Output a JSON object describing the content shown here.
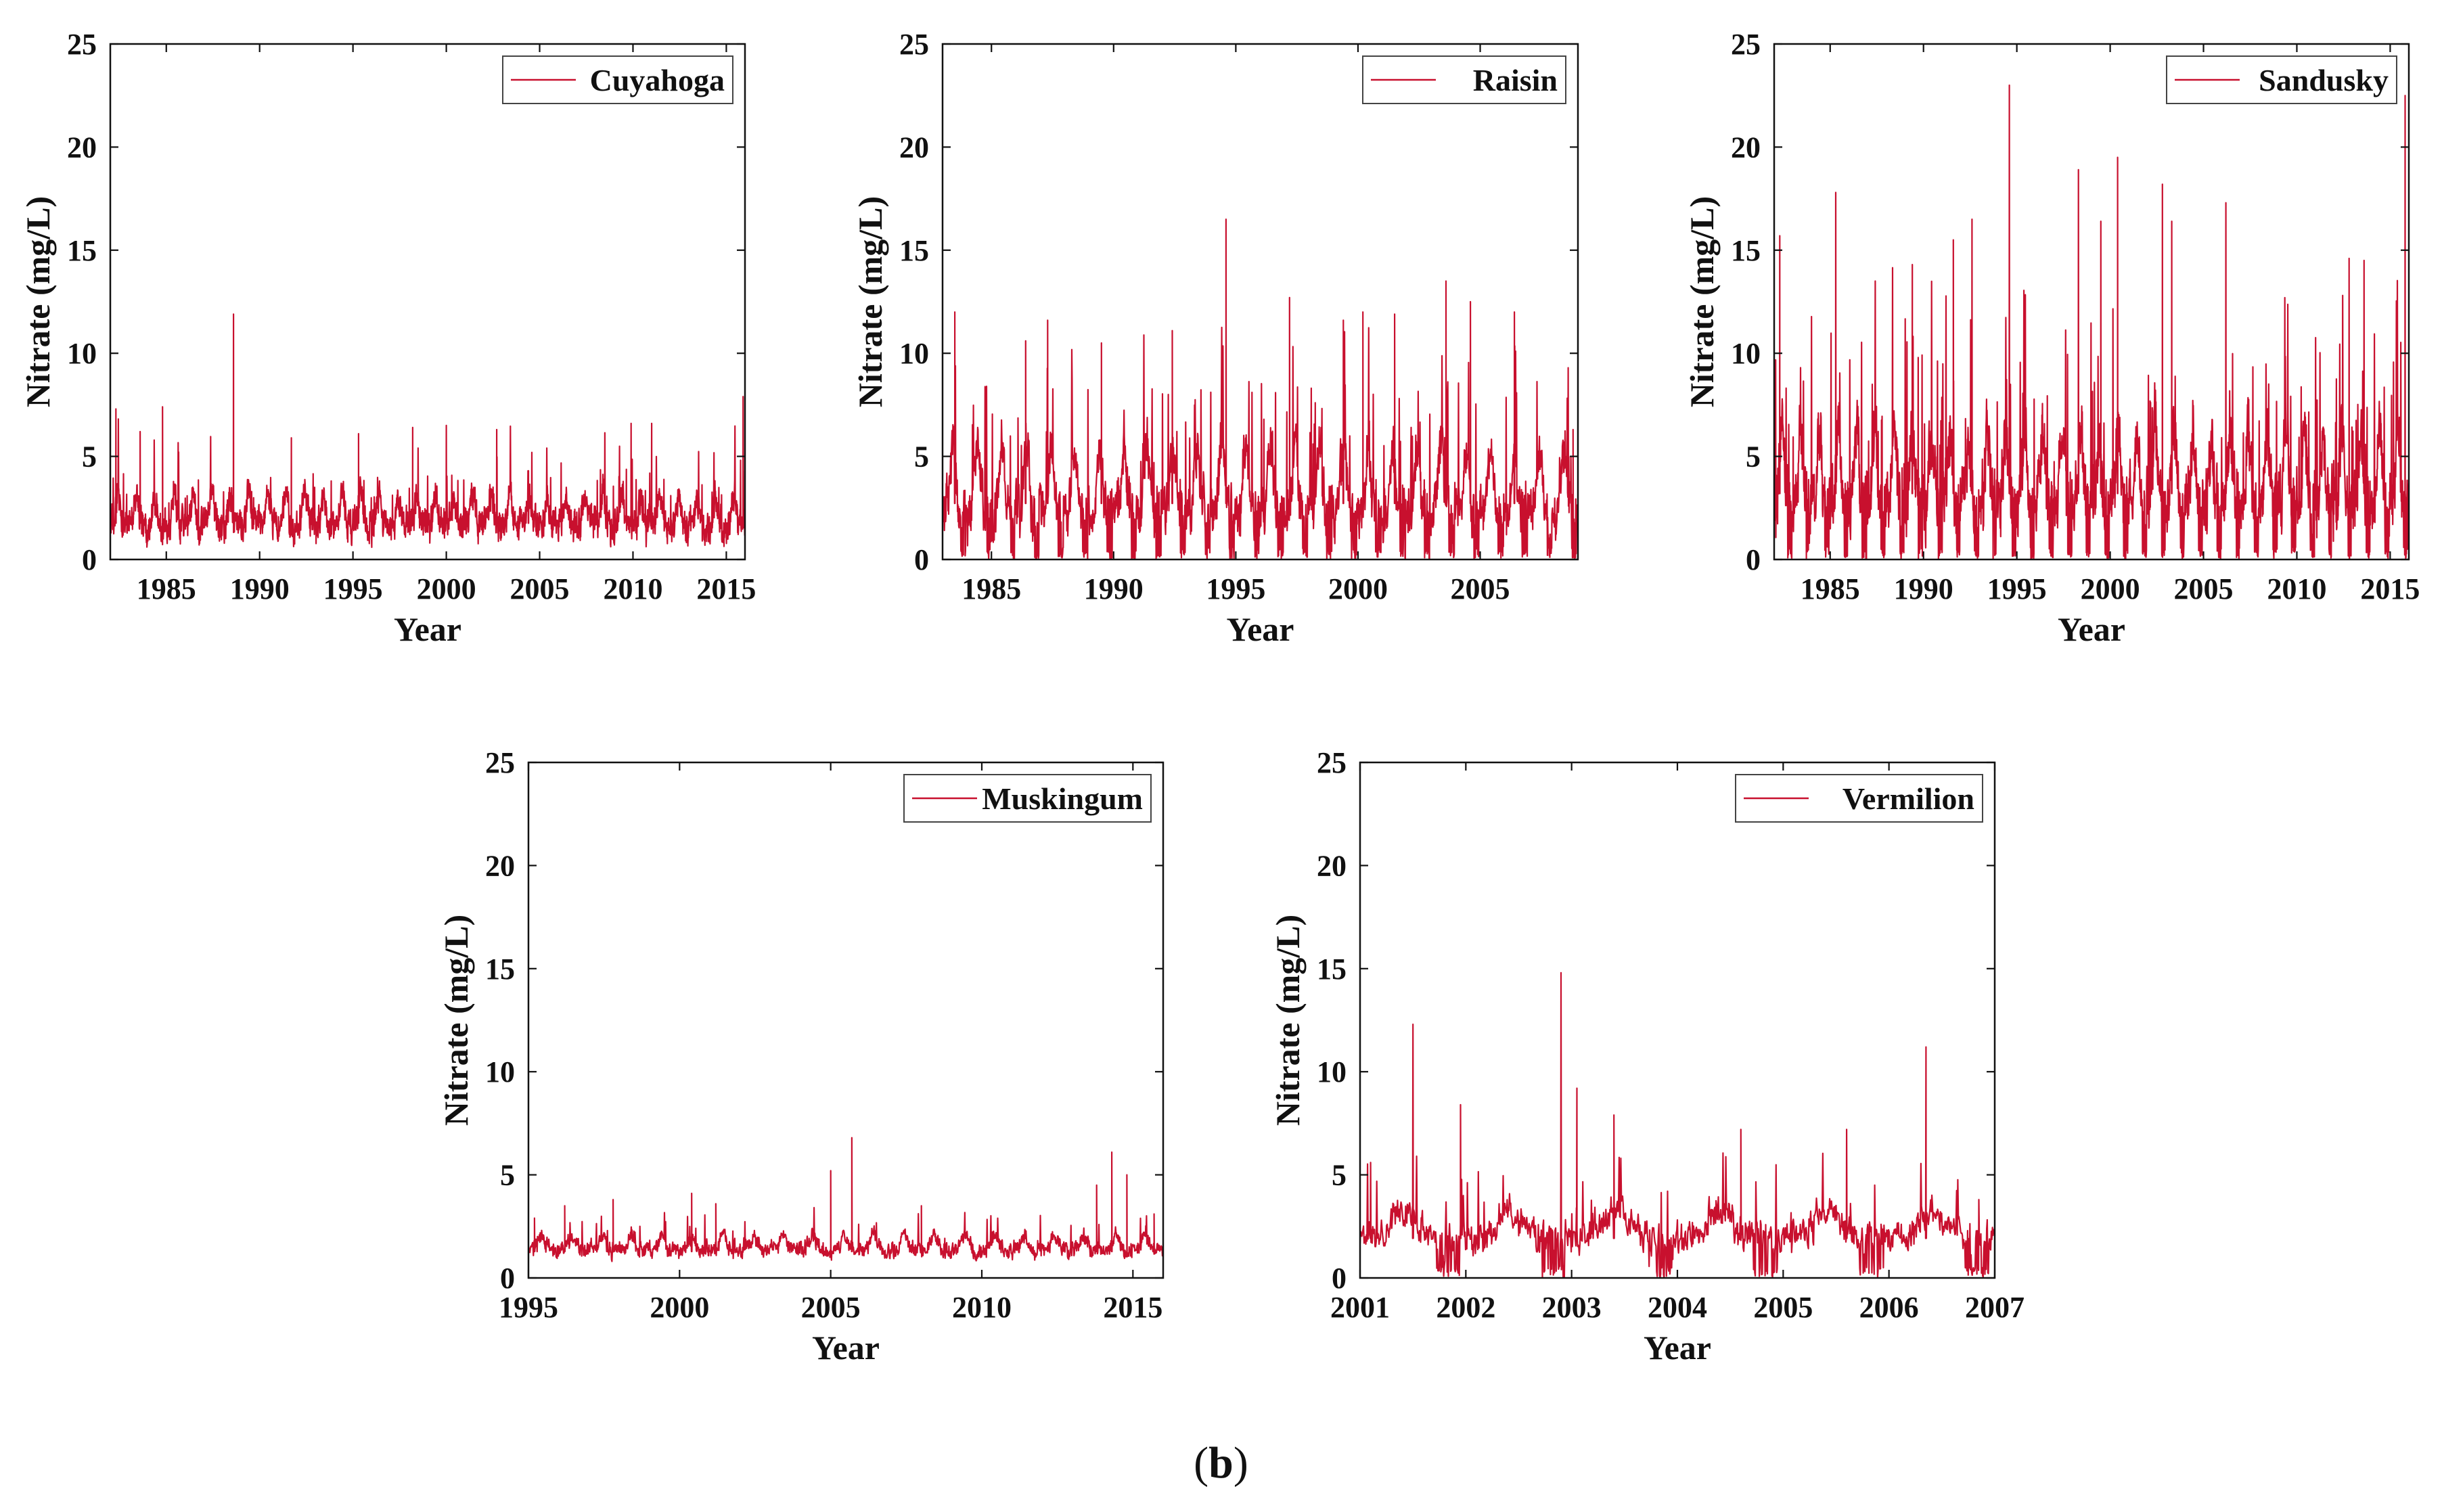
{
  "caption": {
    "open": "(",
    "letter": "b",
    "close": ")"
  },
  "colors": {
    "series": "#c8102e",
    "axis": "#111111",
    "legend_border": "#444444"
  },
  "chart_data": [
    {
      "type": "line",
      "title": "",
      "series": [
        {
          "name": "Cuyahoga",
          "pattern": "dense_seasonal",
          "base": 2.2,
          "amp": 1.6,
          "noise": 1.0,
          "spike_p": 0.03,
          "spike_amp": 2.2,
          "dips": false,
          "peaks": [
            [
              1982.3,
              7.3
            ],
            [
              1983.6,
              6.2
            ],
            [
              1984.8,
              7.4
            ],
            [
              1988.6,
              11.9
            ],
            [
              1991.7,
              5.9
            ],
            [
              1995.3,
              6.1
            ],
            [
              1998.2,
              6.4
            ],
            [
              2000.0,
              6.5
            ],
            [
              2002.7,
              6.3
            ],
            [
              2004.4,
              4.3
            ],
            [
              2009.9,
              6.6
            ],
            [
              2011.0,
              6.6
            ],
            [
              2015.9,
              7.9
            ]
          ]
        }
      ],
      "xlim": [
        1982,
        2016
      ],
      "ylim": [
        0,
        25
      ],
      "xticks": [
        1985,
        1990,
        1995,
        2000,
        2005,
        2010,
        2015
      ],
      "yticks": [
        0,
        5,
        10,
        15,
        20,
        25
      ],
      "xlabel": "Year",
      "ylabel": "Nitrate (mg/L)",
      "legend": "top-right"
    },
    {
      "type": "line",
      "title": "",
      "series": [
        {
          "name": "Raisin",
          "pattern": "dense_seasonal",
          "base": 3.4,
          "amp": 3.2,
          "noise": 1.6,
          "spike_p": 0.04,
          "spike_amp": 4.5,
          "dips": true,
          "peaks": [
            [
              1983.5,
              12.0
            ],
            [
              1986.4,
              10.6
            ],
            [
              1987.3,
              11.6
            ],
            [
              1989.5,
              10.5
            ],
            [
              1992.4,
              11.1
            ],
            [
              1994.6,
              16.5
            ],
            [
              1997.2,
              12.7
            ],
            [
              1999.4,
              11.6
            ],
            [
              2000.2,
              12.0
            ],
            [
              2001.5,
              11.9
            ],
            [
              2003.6,
              13.5
            ],
            [
              2004.6,
              12.5
            ],
            [
              2006.4,
              12.0
            ],
            [
              2008.8,
              6.3
            ]
          ]
        }
      ],
      "xlim": [
        1983,
        2009
      ],
      "ylim": [
        0,
        25
      ],
      "xticks": [
        1985,
        1990,
        1995,
        2000,
        2005
      ],
      "yticks": [
        0,
        5,
        10,
        15,
        20,
        25
      ],
      "xlabel": "Year",
      "ylabel": "Nitrate (mg/L)",
      "legend": "top-right"
    },
    {
      "type": "line",
      "title": "",
      "series": [
        {
          "name": "Sandusky",
          "pattern": "dense_seasonal",
          "base": 4.0,
          "amp": 3.6,
          "noise": 2.0,
          "spike_p": 0.05,
          "spike_amp": 6.0,
          "dips": true,
          "peaks": [
            [
              1982.3,
              15.7
            ],
            [
              1985.3,
              17.8
            ],
            [
              1989.4,
              14.3
            ],
            [
              1991.6,
              15.5
            ],
            [
              1992.6,
              16.5
            ],
            [
              1994.6,
              23.0
            ],
            [
              1998.3,
              18.9
            ],
            [
              1999.5,
              16.4
            ],
            [
              2000.4,
              19.5
            ],
            [
              2002.8,
              18.2
            ],
            [
              2003.3,
              16.4
            ],
            [
              2006.2,
              17.3
            ],
            [
              2012.8,
              14.6
            ],
            [
              2013.6,
              14.5
            ],
            [
              2015.8,
              22.5
            ]
          ]
        }
      ],
      "xlim": [
        1982,
        2016
      ],
      "ylim": [
        0,
        25
      ],
      "xticks": [
        1985,
        1990,
        1995,
        2000,
        2005,
        2010,
        2015
      ],
      "yticks": [
        0,
        5,
        10,
        15,
        20,
        25
      ],
      "xlabel": "Year",
      "ylabel": "Nitrate (mg/L)",
      "legend": "top-right"
    },
    {
      "type": "line",
      "title": "",
      "series": [
        {
          "name": "Muskingum",
          "pattern": "dense_seasonal",
          "base": 1.6,
          "amp": 0.7,
          "noise": 0.5,
          "spike_p": 0.02,
          "spike_amp": 1.0,
          "dips": false,
          "peaks": [
            [
              1995.2,
              2.9
            ],
            [
              1996.2,
              3.5
            ],
            [
              1997.8,
              3.8
            ],
            [
              2000.4,
              4.1
            ],
            [
              2001.2,
              3.6
            ],
            [
              2005.0,
              5.2
            ],
            [
              2005.7,
              6.8
            ],
            [
              2008.0,
              3.5
            ],
            [
              2013.8,
              4.5
            ],
            [
              2014.3,
              6.1
            ],
            [
              2014.8,
              5.0
            ],
            [
              2015.7,
              3.1
            ]
          ]
        }
      ],
      "xlim": [
        1995,
        2016
      ],
      "ylim": [
        0,
        25
      ],
      "xticks": [
        1995,
        2000,
        2005,
        2010,
        2015
      ],
      "yticks": [
        0,
        5,
        10,
        15,
        20,
        25
      ],
      "xlabel": "Year",
      "ylabel": "Nitrate (mg/L)",
      "legend": "top-right"
    },
    {
      "type": "line",
      "title": "",
      "series": [
        {
          "name": "Vermilion",
          "pattern": "event",
          "base": 2.4,
          "amp": 1.4,
          "noise": 1.0,
          "spike_p": 0.05,
          "spike_amp": 2.5,
          "dips": true,
          "peaks": [
            [
              2001.1,
              5.6
            ],
            [
              2001.5,
              12.3
            ],
            [
              2001.95,
              8.4
            ],
            [
              2002.9,
              14.8
            ],
            [
              2003.05,
              9.2
            ],
            [
              2003.4,
              7.9
            ],
            [
              2004.6,
              7.2
            ],
            [
              2005.6,
              7.2
            ],
            [
              2006.35,
              11.2
            ],
            [
              2006.85,
              3.8
            ]
          ]
        }
      ],
      "xlim": [
        2001,
        2007
      ],
      "ylim": [
        0,
        25
      ],
      "xticks": [
        2001,
        2002,
        2003,
        2004,
        2005,
        2006,
        2007
      ],
      "yticks": [
        0,
        5,
        10,
        15,
        20,
        25
      ],
      "xlabel": "Year",
      "ylabel": "Nitrate (mg/L)",
      "legend": "top-right"
    }
  ]
}
